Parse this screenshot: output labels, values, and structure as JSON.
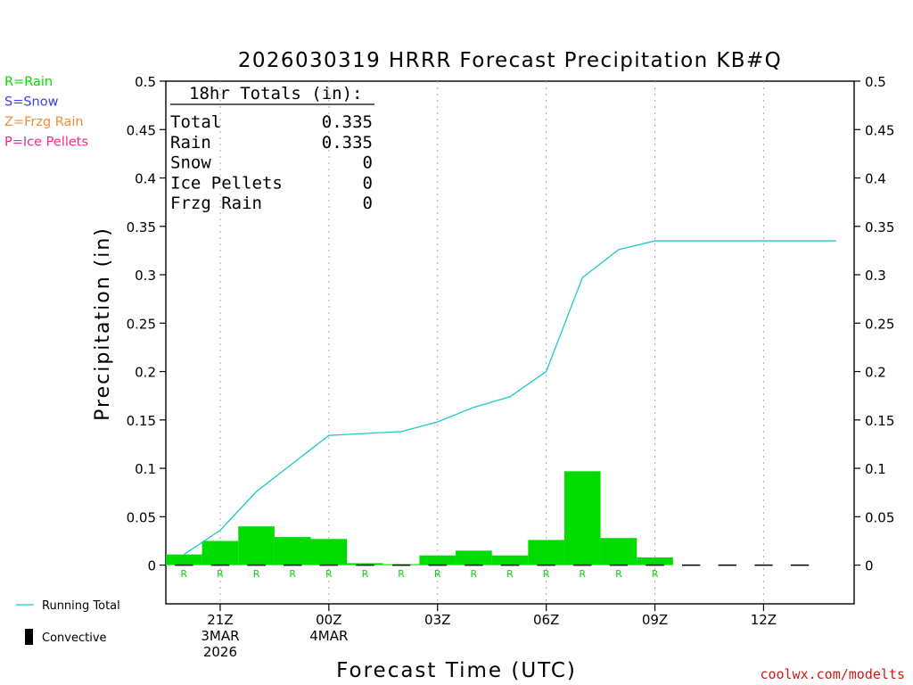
{
  "chart_data": {
    "type": "bar",
    "title": "2026030319 HRRR Forecast Precipitation KB#Q",
    "xlabel": "Forecast Time (UTC)",
    "ylabel": "Precipitation (in)",
    "ylim": [
      -0.04,
      0.5
    ],
    "y_ticks": [
      "0",
      "0.05",
      "0.1",
      "0.15",
      "0.2",
      "0.25",
      "0.3",
      "0.35",
      "0.4",
      "0.45",
      "0.5"
    ],
    "x_range_hours": [
      -0.5,
      18.5
    ],
    "x_ticks": [
      {
        "hour": 1,
        "lines": [
          "21Z",
          "3MAR",
          "2026"
        ]
      },
      {
        "hour": 4,
        "lines": [
          "00Z",
          "4MAR"
        ]
      },
      {
        "hour": 7,
        "lines": [
          "03Z"
        ]
      },
      {
        "hour": 10,
        "lines": [
          "06Z"
        ]
      },
      {
        "hour": 13,
        "lines": [
          "09Z"
        ]
      },
      {
        "hour": 16,
        "lines": [
          "12Z"
        ]
      }
    ],
    "hours": [
      0,
      1,
      2,
      3,
      4,
      5,
      6,
      7,
      8,
      9,
      10,
      11,
      12,
      13,
      14,
      15,
      16,
      17
    ],
    "series": [
      {
        "name": "Hourly Rain",
        "color": "#00dc00",
        "values": [
          0.011,
          0.025,
          0.04,
          0.029,
          0.027,
          0.002,
          0.001,
          0.01,
          0.015,
          0.01,
          0.026,
          0.097,
          0.028,
          0.008,
          0,
          0,
          0,
          0
        ]
      },
      {
        "name": "Running Total",
        "color": "#1ec8c8",
        "x": [
          0,
          1,
          2,
          3,
          4,
          5,
          6,
          7,
          8,
          9,
          10,
          11,
          12,
          13,
          14,
          15,
          16,
          17,
          18
        ],
        "values": [
          0.011,
          0.036,
          0.076,
          0.105,
          0.134,
          0.136,
          0.138,
          0.148,
          0.163,
          0.174,
          0.2,
          0.297,
          0.326,
          0.335,
          0.335,
          0.335,
          0.335,
          0.335,
          0.335
        ]
      }
    ],
    "precip_type_labels": [
      "R",
      "R",
      "R",
      "R",
      "R",
      "R",
      "R",
      "R",
      "R",
      "R",
      "R",
      "R",
      "R",
      "R"
    ],
    "totals_box": {
      "header": "18hr Totals (in):",
      "rows": [
        {
          "label": "Total",
          "value": "0.335"
        },
        {
          "label": "Rain",
          "value": "0.335"
        },
        {
          "label": "Snow",
          "value": "0"
        },
        {
          "label": "Ice Pellets",
          "value": "0"
        },
        {
          "label": "Frzg Rain",
          "value": "0"
        }
      ]
    },
    "type_legend": [
      {
        "text": "R=Rain",
        "color": "#00dc00"
      },
      {
        "text": "S=Snow",
        "color": "#3c3cf0"
      },
      {
        "text": "Z=Frzg Rain",
        "color": "#f08c32"
      },
      {
        "text": "P=Ice Pellets",
        "color": "#f0288c"
      }
    ],
    "line_legend": [
      {
        "text": "Running Total",
        "color": "#1ec8c8"
      },
      {
        "text": "Convective",
        "color": "#000000"
      }
    ],
    "credit": {
      "text": "coolwx.com/modelts",
      "color": "#dc1414"
    },
    "grid": "vertical dotted at x ticks"
  }
}
